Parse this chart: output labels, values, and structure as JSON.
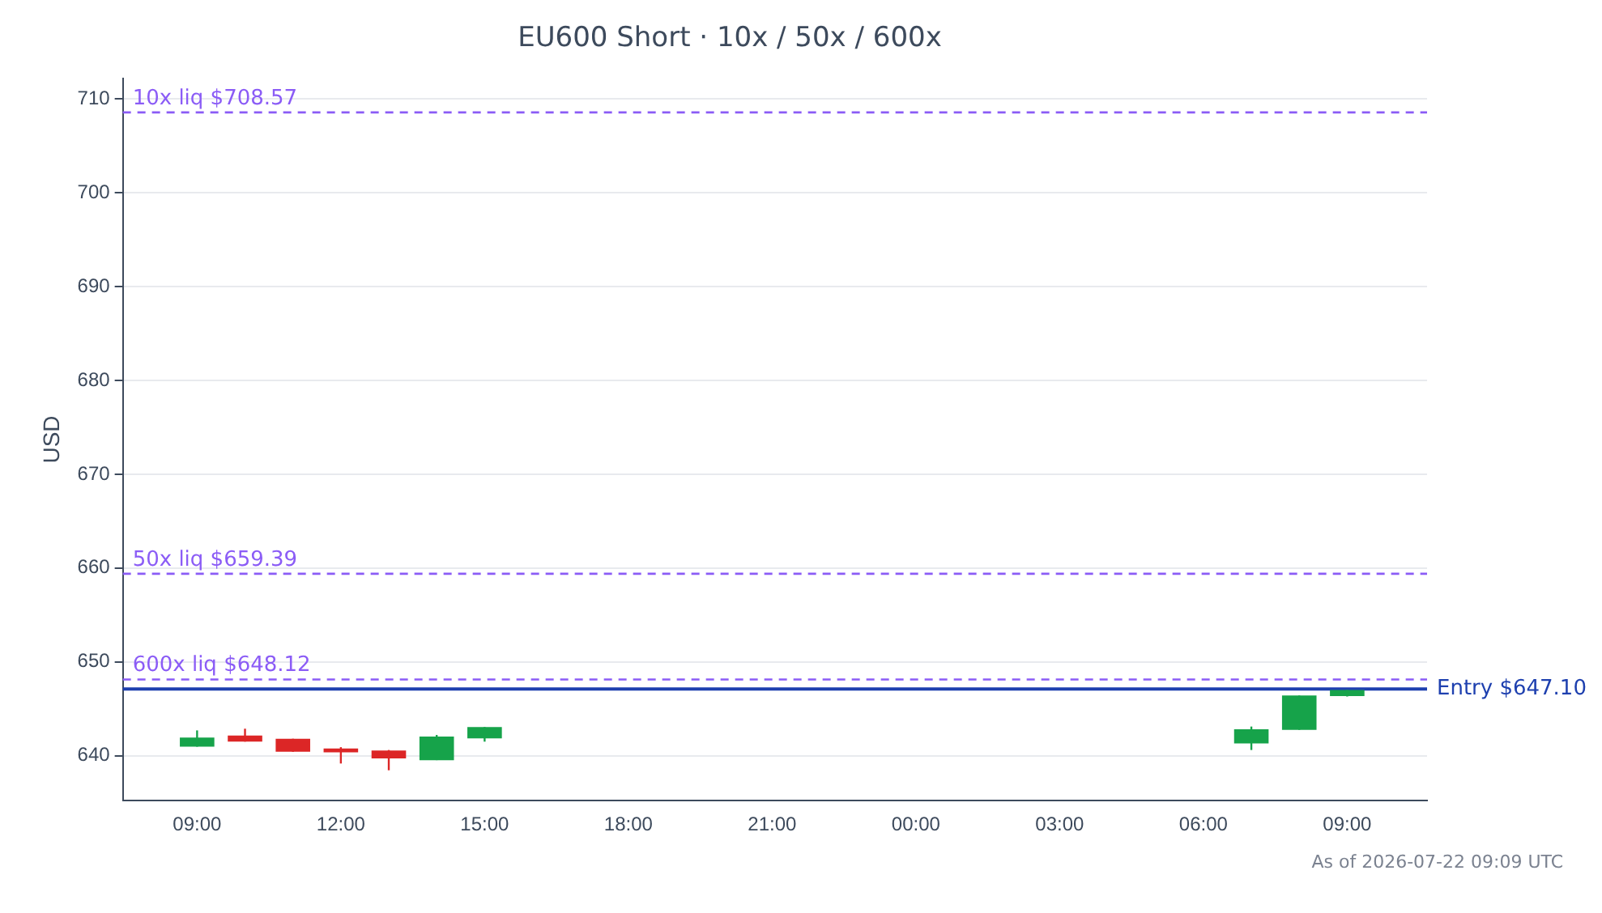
{
  "chart_data": {
    "type": "candlestick",
    "title": "EU600 Short · 10x / 50x / 600x",
    "ylabel": "USD",
    "x": [
      "2026-07-21T09:00",
      "2026-07-21T10:00",
      "2026-07-21T11:00",
      "2026-07-21T12:00",
      "2026-07-21T13:00",
      "2026-07-21T14:00",
      "2026-07-21T15:00",
      "2026-07-22T07:00",
      "2026-07-22T08:00",
      "2026-07-22T09:00"
    ],
    "ohlc": [
      [
        640.95,
        642.69,
        640.95,
        641.92
      ],
      [
        642.15,
        642.87,
        641.49,
        641.49
      ],
      [
        641.8,
        641.8,
        640.41,
        640.41
      ],
      [
        640.77,
        640.9,
        639.16,
        640.36
      ],
      [
        640.54,
        640.6,
        638.44,
        639.7
      ],
      [
        639.52,
        642.2,
        639.52,
        642.03
      ],
      [
        641.85,
        643.05,
        641.49,
        643.05
      ],
      [
        641.31,
        643.1,
        640.6,
        642.82
      ],
      [
        642.75,
        646.41,
        642.75,
        646.41
      ],
      [
        646.34,
        647.0,
        646.3,
        647.0
      ]
    ],
    "colors": [
      "#16a34a",
      "#dc2626",
      "#dc2626",
      "#dc2626",
      "#dc2626",
      "#16a34a",
      "#16a34a",
      "#16a34a",
      "#16a34a",
      "#16a34a"
    ],
    "xlim": [
      "2026-07-21T07:27",
      "2026-07-22T10:40"
    ],
    "xticks": [
      {
        "value": "2026-07-21T09:00",
        "label": "09:00"
      },
      {
        "value": "2026-07-21T12:00",
        "label": "12:00"
      },
      {
        "value": "2026-07-21T15:00",
        "label": "15:00"
      },
      {
        "value": "2026-07-21T18:00",
        "label": "18:00"
      },
      {
        "value": "2026-07-21T21:00",
        "label": "21:00"
      },
      {
        "value": "2026-07-22T00:00",
        "label": "00:00"
      },
      {
        "value": "2026-07-22T03:00",
        "label": "03:00"
      },
      {
        "value": "2026-07-22T06:00",
        "label": "06:00"
      },
      {
        "value": "2026-07-22T09:00",
        "label": "09:00"
      }
    ],
    "ylim": [
      635.2,
      712.2
    ],
    "yticks": [
      640,
      650,
      660,
      670,
      680,
      690,
      700,
      710
    ],
    "grid": "y",
    "ref_lines": [
      {
        "axis": "y",
        "value": 708.57,
        "label": "10x liq $708.57",
        "color": "#8b5cf6",
        "line_style": "dashed"
      },
      {
        "axis": "y",
        "value": 659.39,
        "label": "50x liq $659.39",
        "color": "#8b5cf6",
        "line_style": "dashed"
      },
      {
        "axis": "y",
        "value": 648.12,
        "label": "600x liq $648.12",
        "color": "#8b5cf6",
        "line_style": "dashed"
      },
      {
        "axis": "y",
        "value": 647.1,
        "label": "Entry $647.10",
        "color": "#1e40af",
        "line_style": "solid"
      }
    ],
    "annotations": [
      "As of 2026-07-22 09:09 UTC"
    ]
  }
}
